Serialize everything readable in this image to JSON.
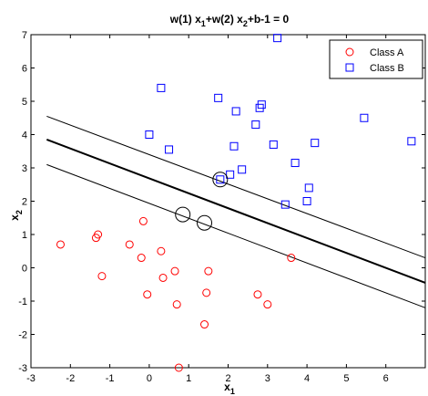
{
  "chart_data": {
    "type": "scatter",
    "title": {
      "parts": [
        {
          "text": "w(1) x"
        },
        {
          "text": "1",
          "sub": true
        },
        {
          "text": "+w(2) x"
        },
        {
          "text": "2",
          "sub": true
        },
        {
          "text": "+b-1 = 0"
        }
      ]
    },
    "xlabel": {
      "main": "x",
      "sub": "1"
    },
    "ylabel": {
      "main": "x",
      "sub": "2"
    },
    "xlim": [
      -3,
      7
    ],
    "ylim": [
      -3,
      7
    ],
    "xticks": [
      -3,
      -2,
      -1,
      0,
      1,
      2,
      3,
      4,
      5,
      6
    ],
    "yticks": [
      -3,
      -2,
      -1,
      0,
      1,
      2,
      3,
      4,
      5,
      6,
      7
    ],
    "grid": false,
    "legend": {
      "placement": "top-right"
    },
    "series": [
      {
        "name": "Class A",
        "marker": "circle",
        "color": "#ff0000",
        "x": [
          -2.25,
          -1.35,
          -1.3,
          -1.2,
          -0.5,
          -0.2,
          -0.15,
          -0.05,
          0.3,
          0.35,
          0.65,
          0.7,
          0.75,
          1.4,
          1.45,
          1.5,
          2.75,
          3.0,
          3.6
        ],
        "y": [
          0.7,
          0.9,
          1.0,
          -0.25,
          0.7,
          0.3,
          1.4,
          -0.8,
          0.5,
          -0.3,
          -0.1,
          -1.1,
          -3.0,
          -1.7,
          -0.75,
          -0.1,
          -0.8,
          -1.1,
          0.3
        ]
      },
      {
        "name": "Class B",
        "marker": "square",
        "color": "#0000ff",
        "x": [
          0.0,
          0.3,
          0.5,
          1.75,
          1.8,
          2.05,
          2.15,
          2.2,
          2.35,
          2.7,
          2.8,
          2.85,
          3.15,
          3.25,
          3.45,
          3.7,
          4.0,
          4.05,
          4.2,
          5.45,
          6.65
        ],
        "y": [
          4.0,
          5.4,
          3.55,
          5.1,
          2.65,
          2.8,
          3.65,
          4.7,
          2.95,
          4.3,
          4.8,
          4.9,
          3.7,
          6.9,
          1.9,
          3.15,
          2.0,
          2.4,
          3.75,
          4.5,
          3.8
        ]
      }
    ],
    "lines": [
      {
        "role": "margin-upper",
        "x": [
          -2.6,
          7.0
        ],
        "y": [
          4.55,
          0.3
        ],
        "width": 1
      },
      {
        "role": "decision-boundary",
        "x": [
          -2.6,
          7.0
        ],
        "y": [
          3.85,
          -0.45
        ],
        "width": 2
      },
      {
        "role": "margin-lower",
        "x": [
          -2.6,
          7.0
        ],
        "y": [
          3.1,
          -1.2
        ],
        "width": 1
      }
    ],
    "support_vectors": {
      "color": "#000000",
      "x": [
        0.85,
        1.4,
        1.8
      ],
      "y": [
        1.6,
        1.35,
        2.65
      ]
    }
  }
}
